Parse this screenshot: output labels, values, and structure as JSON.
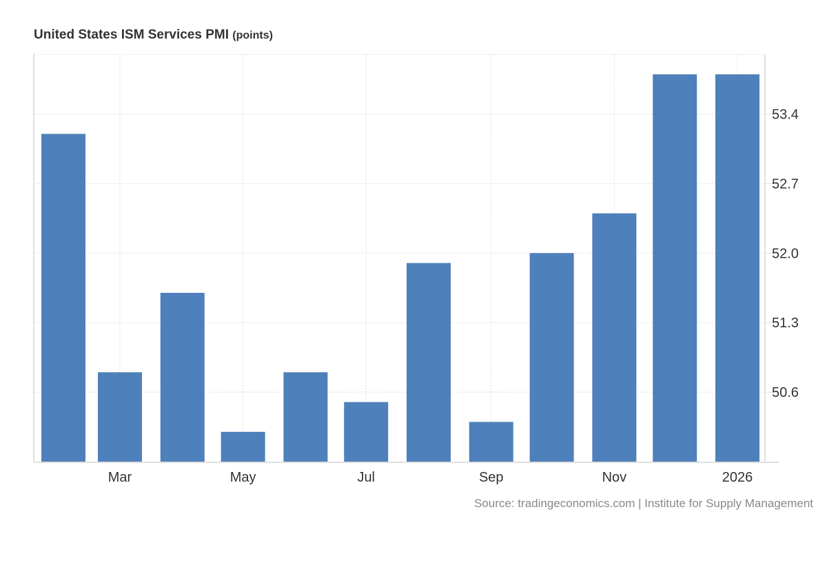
{
  "chart_data": {
    "type": "bar",
    "title": "United States ISM Services PMI",
    "unit": "(points)",
    "categories": [
      "2025-02",
      "2025-03",
      "2025-04",
      "2025-05",
      "2025-06",
      "2025-07",
      "2025-08",
      "2025-09",
      "2025-10",
      "2025-11",
      "2025-12",
      "2026-01"
    ],
    "values": [
      53.2,
      50.8,
      51.6,
      50.2,
      50.8,
      50.5,
      51.9,
      50.3,
      52.0,
      52.4,
      53.8,
      53.8
    ],
    "x_ticks": [
      {
        "label": "Mar",
        "date": "2025-03"
      },
      {
        "label": "May",
        "date": "2025-05"
      },
      {
        "label": "Jul",
        "date": "2025-07"
      },
      {
        "label": "Sep",
        "date": "2025-09"
      },
      {
        "label": "Nov",
        "date": "2025-11"
      },
      {
        "label": "2026",
        "date": "2026-01"
      }
    ],
    "y_ticks": [
      50.6,
      51.3,
      52.0,
      52.7,
      53.4
    ],
    "y_tick_labels": [
      "50.6",
      "51.3",
      "52.0",
      "52.7",
      "53.4"
    ],
    "ylim": [
      49.9,
      54.0
    ],
    "y_axis_side": "right",
    "grid": true,
    "xlabel": "",
    "ylabel": "",
    "bar_color": "#4e80bb",
    "source": "Source: tradingeconomics.com | Institute for Supply Management"
  }
}
